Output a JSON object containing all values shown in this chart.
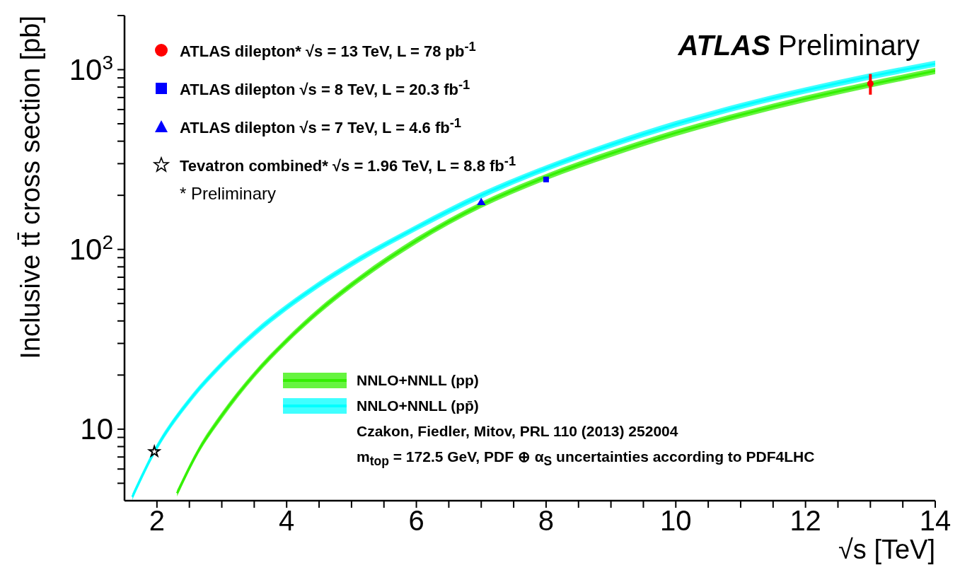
{
  "chart_data": {
    "type": "line",
    "xlabel": "√s [TeV]",
    "ylabel": "Inclusive tt̄ cross section [pb]",
    "log": "y",
    "xlim": [
      1.5,
      14
    ],
    "xticks": [
      2,
      {
        "value": 2.5,
        "label": null
      },
      {
        "value": 3,
        "label": null
      },
      {
        "value": 3.5,
        "label": null
      },
      4,
      {
        "value": 4.5,
        "label": null
      },
      {
        "value": 5,
        "label": null
      },
      {
        "value": 5.5,
        "label": null
      },
      6,
      {
        "value": 6.5,
        "label": null
      },
      {
        "value": 7,
        "label": null
      },
      {
        "value": 7.5,
        "label": null
      },
      8,
      {
        "value": 8.5,
        "label": null
      },
      {
        "value": 9,
        "label": null
      },
      {
        "value": 9.5,
        "label": null
      },
      10,
      {
        "value": 10.5,
        "label": null
      },
      {
        "value": 11,
        "label": null
      },
      {
        "value": 11.5,
        "label": null
      },
      12,
      {
        "value": 12.5,
        "label": null
      },
      {
        "value": 13,
        "label": null
      },
      {
        "value": 13.5,
        "label": null
      },
      14
    ],
    "ylim": [
      4,
      2000
    ],
    "yticks": [
      {
        "value": 5,
        "label": null
      },
      {
        "value": 6,
        "label": null
      },
      {
        "value": 7,
        "label": null
      },
      {
        "value": 8,
        "label": null
      },
      {
        "value": 9,
        "label": null
      },
      10,
      {
        "value": 20,
        "label": null
      },
      {
        "value": 30,
        "label": null
      },
      {
        "value": 40,
        "label": null
      },
      {
        "value": 50,
        "label": null
      },
      {
        "value": 60,
        "label": null
      },
      {
        "value": 70,
        "label": null
      },
      {
        "value": 80,
        "label": null
      },
      {
        "value": 90,
        "label": null
      },
      {
        "value": 100,
        "label": "10$^{2}$"
      },
      {
        "value": 200,
        "label": null
      },
      {
        "value": 300,
        "label": null
      },
      {
        "value": 400,
        "label": null
      },
      {
        "value": 500,
        "label": null
      },
      {
        "value": 600,
        "label": null
      },
      {
        "value": 700,
        "label": null
      },
      {
        "value": 800,
        "label": null
      },
      {
        "value": 900,
        "label": null
      },
      {
        "value": 1000,
        "label": "10$^{3}$"
      },
      {
        "value": 2000,
        "label": null
      }
    ],
    "legend": "top left",
    "series": [
      {
        "name": "NNLO+NNLL (pp)",
        "color": "#33f000",
        "x": [
          2.31,
          2.64,
          3,
          3.52,
          4,
          4.49,
          5,
          6,
          7,
          8,
          9,
          10,
          11,
          12,
          13,
          14
        ],
        "values": [
          4.4,
          7.6,
          11.9,
          20.5,
          31.1,
          45.2,
          63.5,
          112,
          177,
          253,
          341,
          445,
          560,
          689,
          828,
          984
        ],
        "lower": [
          4.22,
          7.3,
          11.4,
          19.7,
          29.9,
          43.4,
          61,
          107.5,
          170,
          243,
          327,
          427,
          538,
          661,
          795,
          945
        ],
        "upper": [
          4.58,
          7.9,
          12.4,
          21.3,
          32.3,
          47,
          66,
          116.5,
          184,
          263,
          355,
          463,
          582,
          717,
          861,
          1023
        ]
      },
      {
        "name": "NNLO+NNLL (pp̄)",
        "color": "#00ffff",
        "x": [
          1.62,
          1.96,
          2.55,
          3,
          3.52,
          4,
          4.49,
          5,
          6,
          7,
          8,
          9,
          10,
          11,
          12,
          13,
          14
        ],
        "values": [
          4.2,
          7.5,
          15.2,
          23,
          34.6,
          47.6,
          63.5,
          83.2,
          132,
          200,
          283,
          382,
          498,
          627,
          767,
          918,
          1079
        ],
        "lower": [
          4.03,
          7.2,
          14.6,
          22.1,
          33.2,
          45.7,
          61,
          79.9,
          127,
          192,
          272,
          367,
          478,
          602,
          736,
          881,
          1036
        ],
        "upper": [
          4.37,
          7.8,
          15.8,
          23.9,
          36,
          49.5,
          66,
          86.5,
          137,
          208,
          294,
          397,
          518,
          652,
          798,
          955,
          1122
        ]
      },
      {
        "name": "ATLAS dilepton*  √s = 13 TeV,  L = 78 pb$^{-1}$",
        "type": "scatter",
        "marker": "circle",
        "color": "#ff0000",
        "x": [
          13
        ],
        "values": [
          836
        ],
        "errors": [
          110
        ]
      },
      {
        "name": "ATLAS dilepton  √s = 8 TeV,  L = 20.3 fb$^{-1}$",
        "type": "scatter",
        "marker": "square",
        "color": "#0000ff",
        "x": [
          8
        ],
        "values": [
          245
        ]
      },
      {
        "name": "ATLAS dilepton  √s = 7 TeV,  L = 4.6 fb$^{-1}$",
        "type": "scatter",
        "marker": "triangle",
        "color": "#0000ff",
        "x": [
          7
        ],
        "values": [
          182
        ]
      },
      {
        "name": "Tevatron combined*  √s = 1.96 TeV,  L = 8.8 fb$^{-1}$",
        "type": "scatter",
        "marker": "star",
        "color": "#000000",
        "x": [
          1.96
        ],
        "values": [
          7.5
        ]
      }
    ],
    "annotations": [
      "* Preliminary",
      "ATLAS Preliminary",
      "Czakon, Fiedler, Mitov, PRL 110 (2013) 252004",
      "m$_{top}$ = 172.5 GeV, PDF ⊕ α$_{S}$ uncertainties according to PDF4LHC"
    ]
  }
}
